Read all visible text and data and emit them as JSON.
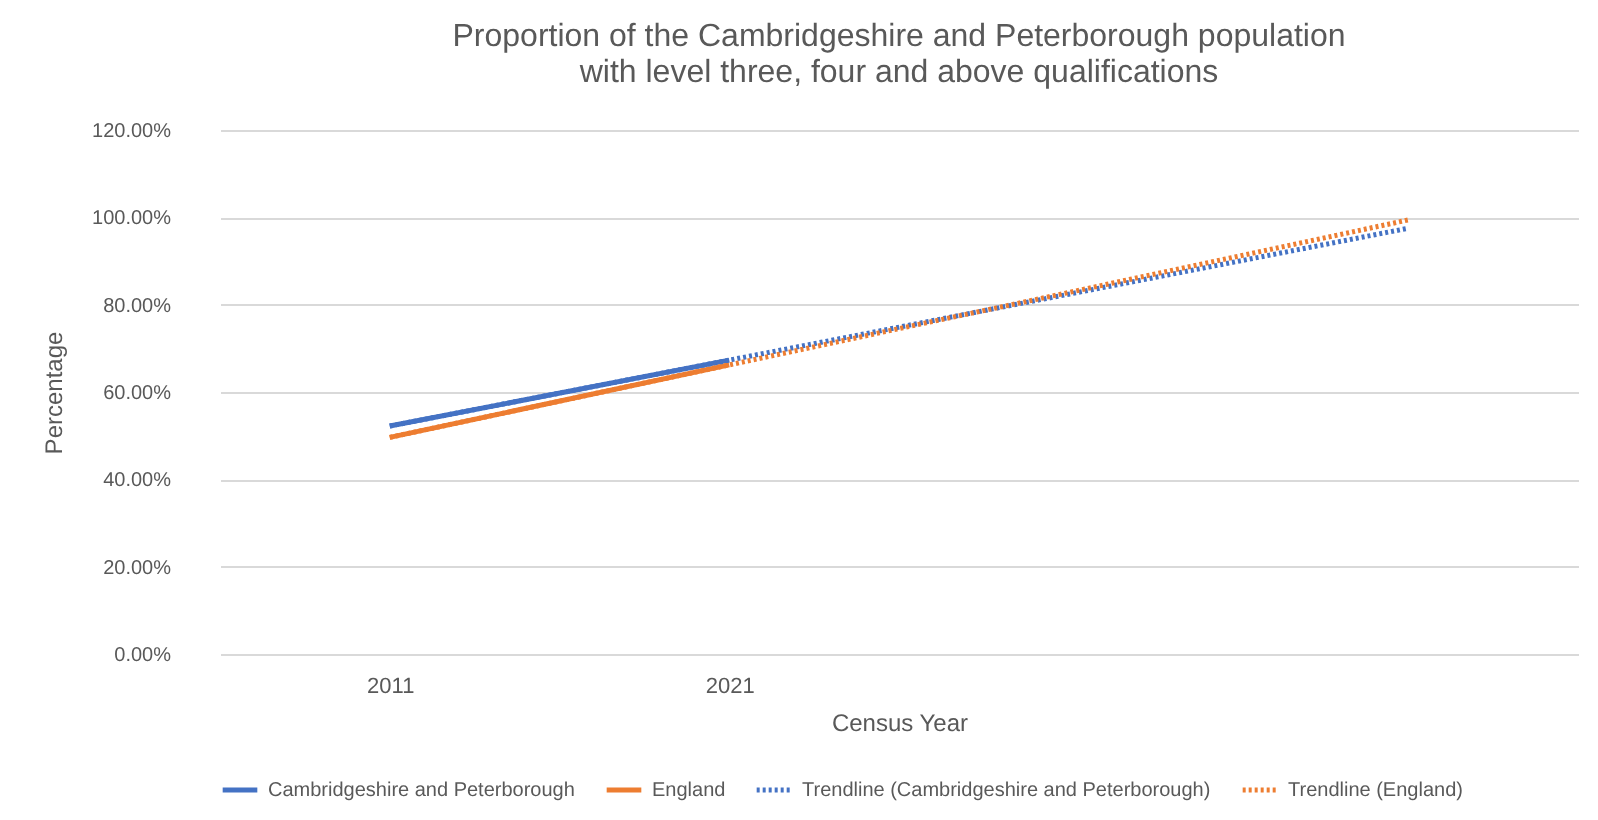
{
  "chart_data": {
    "type": "line",
    "title": [
      "Proportion of the Cambridgeshire and Peterborough population",
      "with level three, four and above qualifications"
    ],
    "xlabel": "Census Year",
    "ylabel": "Percentage",
    "categories": [
      "2011",
      "2021",
      null,
      null
    ],
    "series": [
      {
        "name": "Cambridgeshire and Peterborough",
        "color": "#4472c4",
        "values": [
          52.2,
          67.3,
          null,
          null
        ],
        "line_style": "solid"
      },
      {
        "name": "England",
        "color": "#ed7d31",
        "values": [
          49.6,
          66.2,
          null,
          null
        ],
        "line_style": "solid"
      },
      {
        "name": "Trendline (Cambridgeshire and Peterborough)",
        "type": "line",
        "color": "#4472c4",
        "values": [
          52.2,
          67.3,
          82.4,
          97.5
        ],
        "line_style": "dotted"
      },
      {
        "name": "Trendline (England)",
        "type": "line",
        "color": "#ed7d31",
        "values": [
          49.6,
          66.2,
          82.8,
          99.4
        ],
        "line_style": "dotted"
      }
    ],
    "ylim": [
      0,
      120
    ],
    "yticks": [
      {
        "value": 0,
        "label": "0.00%"
      },
      {
        "value": 20,
        "label": "20.00%"
      },
      {
        "value": 40,
        "label": "40.00%"
      },
      {
        "value": 60,
        "label": "60.00%"
      },
      {
        "value": 80,
        "label": "80.00%"
      },
      {
        "value": 100,
        "label": "100.00%"
      },
      {
        "value": 120,
        "label": "120.00%"
      }
    ],
    "grid": "y",
    "legend": "bottom",
    "marker": "none"
  }
}
